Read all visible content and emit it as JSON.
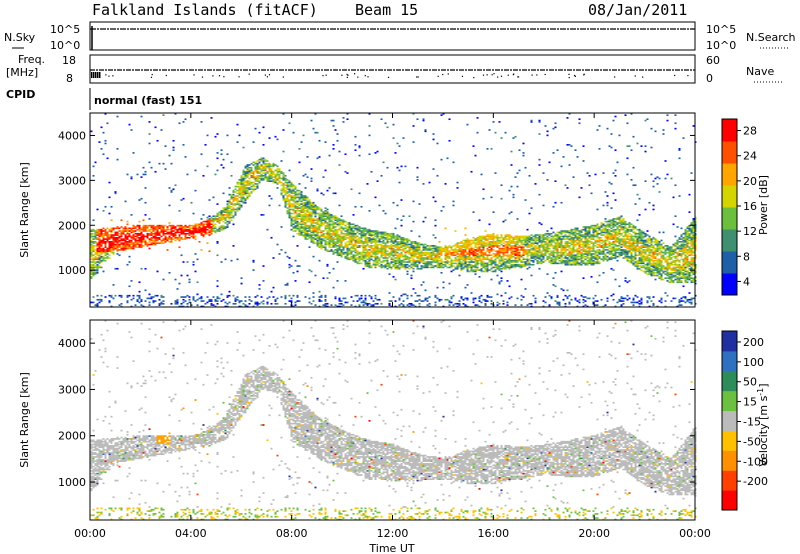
{
  "header": {
    "station": "Falkland Islands (fitACF)",
    "beam": "Beam 15",
    "date": "08/Jan/2011"
  },
  "noise_panel": {
    "left_label": "N.Sky",
    "right_label": "N.Search",
    "left_ticks": [
      "10^5",
      "10^0"
    ],
    "right_ticks": [
      "10^5",
      "10^0"
    ]
  },
  "freq_panel": {
    "left_label": "Freq.",
    "left_unit": "[MHz]",
    "right_label": "Nave",
    "left_ticks": [
      "18",
      "8"
    ],
    "right_ticks": [
      "60",
      "0"
    ]
  },
  "cpid": {
    "label": "CPID",
    "mode": "normal (fast) 151"
  },
  "x_axis": {
    "label": "Time UT",
    "ticks": [
      "00:00",
      "04:00",
      "08:00",
      "12:00",
      "16:00",
      "20:00",
      "00:00"
    ]
  },
  "power_panel": {
    "ylabel": "Slant Range [km]",
    "yticks": [
      "1000",
      "2000",
      "3000",
      "4000"
    ],
    "colorbar_label": "Power [dB]",
    "colorbar_ticks": [
      "4",
      "8",
      "12",
      "16",
      "20",
      "24",
      "28"
    ],
    "colors": [
      "#0000ff",
      "#1e5fa8",
      "#3f8f70",
      "#6cbf3c",
      "#d4d400",
      "#ffa500",
      "#ff5000",
      "#ff0000"
    ]
  },
  "velocity_panel": {
    "ylabel": "Slant Range [km]",
    "yticks": [
      "1000",
      "2000",
      "3000",
      "4000"
    ],
    "colorbar_label": "Velocity [m s^-1]",
    "colorbar_ticks": [
      "200",
      "100",
      "50",
      "15",
      "-15",
      "-50",
      "-100",
      "-200"
    ],
    "colors": [
      "#2030a0",
      "#3070c0",
      "#2d8c5a",
      "#6cc040",
      "#bbbbbb",
      "#ffc000",
      "#ff9000",
      "#ff4000",
      "#ff0000"
    ]
  },
  "chart_data": [
    {
      "type": "heatmap",
      "name": "power",
      "x_range_hours": [
        0,
        24
      ],
      "y_range_km": [
        180,
        4500
      ],
      "echo_band": {
        "x": [
          0,
          1,
          2,
          3,
          4,
          4.6,
          5.3,
          6.1,
          6.8,
          7.4,
          8.0,
          9.0,
          10,
          11,
          12,
          13,
          14,
          15,
          16,
          17,
          18,
          19,
          20,
          21,
          22,
          23,
          24
        ],
        "lower_km": [
          800,
          1400,
          1500,
          1600,
          1700,
          1750,
          1900,
          2500,
          3000,
          2900,
          1850,
          1500,
          1250,
          1050,
          1000,
          1000,
          1050,
          950,
          950,
          1050,
          1150,
          1100,
          1100,
          1300,
          900,
          700,
          700
        ],
        "upper_km": [
          1900,
          1950,
          2000,
          2000,
          2000,
          2100,
          2400,
          3300,
          3500,
          3300,
          2900,
          2400,
          2100,
          1900,
          1800,
          1600,
          1500,
          1700,
          1800,
          1750,
          1800,
          1900,
          2000,
          2200,
          1800,
          1500,
          2200
        ]
      },
      "strong_segments": [
        {
          "x": [
            0.2,
            4.8
          ],
          "range_km": [
            1400,
            2100
          ],
          "power_db": 26
        },
        {
          "x": [
            13.8,
            17.2
          ],
          "range_km": [
            1300,
            1950
          ],
          "power_db": 20
        }
      ],
      "colorbar_range_db": [
        0,
        30
      ]
    },
    {
      "type": "heatmap",
      "name": "velocity",
      "x_range_hours": [
        0,
        24
      ],
      "y_range_km": [
        180,
        4500
      ],
      "dominant_velocity_range_ms": [
        -15,
        15
      ],
      "colorbar_range_ms": [
        -200,
        200
      ]
    }
  ]
}
